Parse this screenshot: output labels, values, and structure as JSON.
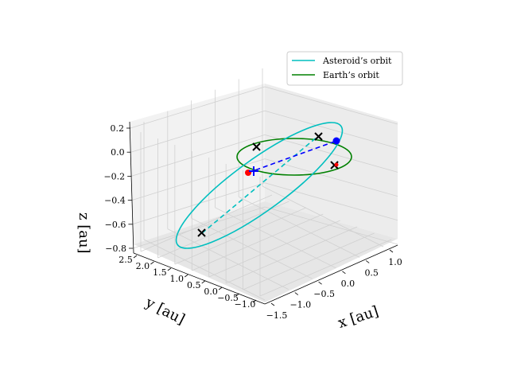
{
  "chart_data": {
    "type": "line",
    "projection": "3d",
    "axes": {
      "x": {
        "label": "x [au]",
        "ticks": [
          "−1.5",
          "−1.0",
          "−0.5",
          "0.0",
          "0.5",
          "1.0"
        ]
      },
      "y": {
        "label": "y [au]",
        "ticks": [
          "−1.0",
          "−0.5",
          "0.0",
          "0.5",
          "1.0",
          "1.5",
          "2.0",
          "2.5"
        ]
      },
      "z": {
        "label": "z [au]",
        "ticks": [
          "0.2",
          "0.0",
          "−0.2",
          "−0.4",
          "−0.6",
          "−0.8"
        ]
      }
    },
    "grid": true,
    "legend": {
      "placement": "top-right",
      "entries": [
        {
          "name": "Asteroid’s orbit",
          "color": "#00bfbf"
        },
        {
          "name": "Earth’s orbit",
          "color": "#008000"
        }
      ]
    },
    "series": [
      {
        "name": "Asteroid’s orbit",
        "color": "#00bfbf",
        "style": "solid",
        "shape": "ellipse"
      },
      {
        "name": "Earth’s orbit",
        "color": "#008000",
        "style": "solid",
        "shape": "circle"
      },
      {
        "name": "asteroid-line-of-nodes",
        "color": "#00bfbf",
        "style": "dashed"
      },
      {
        "name": "earth-asteroid-connection",
        "color": "#0000ff",
        "style": "dashed"
      }
    ],
    "markers": [
      {
        "label": "Sun",
        "symbol": "+",
        "color": "#0000ff",
        "position": [
          0,
          0,
          0
        ]
      },
      {
        "label": "Earth position",
        "symbol": "o",
        "color": "#0000ff",
        "position": [
          -0.59,
          -0.79,
          0.0
        ]
      },
      {
        "label": "Asteroid position",
        "symbol": "o",
        "color": "#ff0000"
      },
      {
        "label": "Asteroid perihelion",
        "symbol": "x",
        "color": "#000000"
      },
      {
        "label": "Asteroid aphelion",
        "symbol": "x",
        "color": "#000000"
      },
      {
        "label": "Earth orbit point 1",
        "symbol": "x",
        "color": "#000000"
      },
      {
        "label": "Earth orbit point 2",
        "symbol": "x",
        "color": "#000000"
      }
    ]
  }
}
